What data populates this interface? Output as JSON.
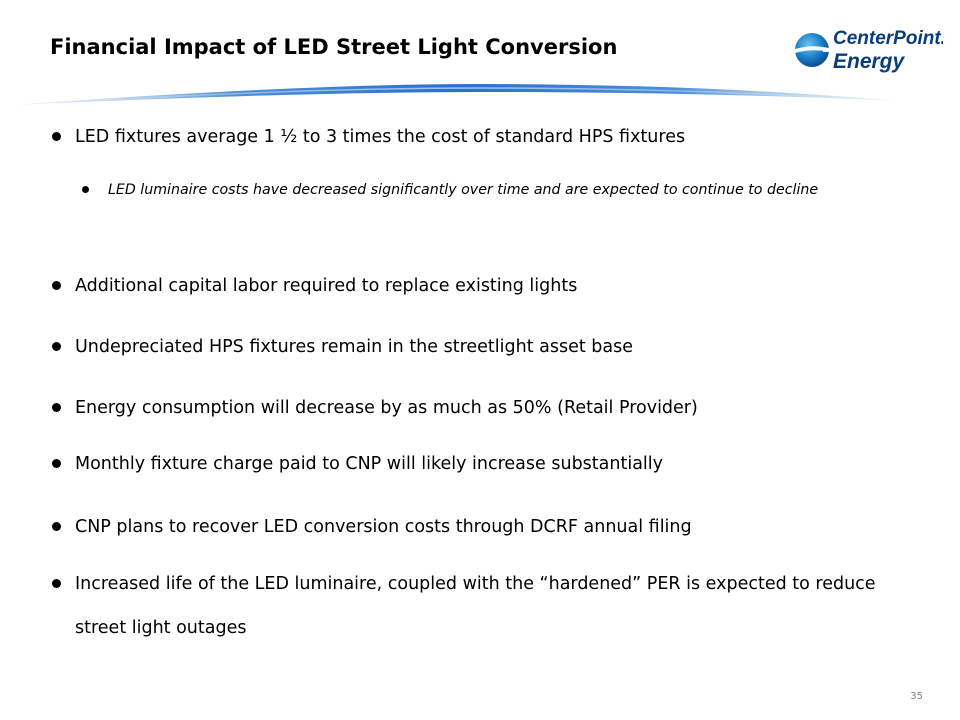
{
  "slide": {
    "title": "Financial Impact of LED Street Light Conversion",
    "logo": {
      "line1": "CenterPoint.",
      "line2": "Energy",
      "brand_color": "#0a3e7a",
      "globe_color": "#1a7fc9"
    },
    "bullets": [
      {
        "text": "LED fixtures average 1 ½ to 3 times the cost of standard HPS fixtures"
      },
      {
        "text": "LED luminaire costs have decreased significantly over time and are expected to continue to decline"
      },
      {
        "text": "Additional capital labor required to replace existing lights"
      },
      {
        "text": "Undepreciated HPS fixtures remain in the streetlight asset base"
      },
      {
        "text": "Energy consumption will decrease by as much as 50% (Retail Provider)"
      },
      {
        "text": "Monthly fixture charge paid to CNP will likely increase substantially"
      },
      {
        "text": "CNP plans to recover LED conversion costs through DCRF annual filing"
      },
      {
        "text": "Increased life of the LED luminaire, coupled with the “hardened” PER is expected to reduce street light outages"
      }
    ],
    "page_number": "35"
  }
}
